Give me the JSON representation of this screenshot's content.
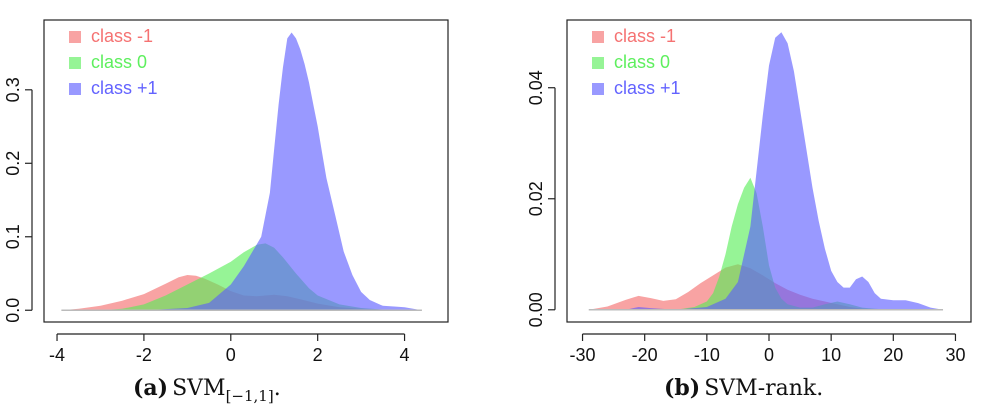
{
  "colors": {
    "class_-1": "#f46a6a",
    "class_0": "#55ee55",
    "class_+1": "#5b5bff",
    "baseline": "#bbbbbb",
    "axis": "#222222"
  },
  "chart_data": [
    {
      "type": "area",
      "caption_label": "(a)",
      "caption_text": "SVM",
      "caption_sub": "[−1,1]",
      "caption_suffix": ".",
      "xlim": [
        -4.3,
        5.0
      ],
      "ylim": [
        -0.016,
        0.395
      ],
      "xticks": [
        -4,
        -2,
        0,
        2,
        4
      ],
      "yticks": [
        0.0,
        0.1,
        0.2,
        0.3
      ],
      "xtick_labels": [
        "-4",
        "-2",
        "0",
        "2",
        "4"
      ],
      "ytick_labels": [
        "0.0",
        "0.1",
        "0.2",
        "0.3"
      ],
      "legend_position": "top-left",
      "series": [
        {
          "name": "class -1",
          "color_key": "class_-1",
          "x": [
            -3.9,
            -3.5,
            -3.0,
            -2.5,
            -2.0,
            -1.5,
            -1.2,
            -1.0,
            -0.8,
            -0.6,
            -0.3,
            0.0,
            0.3,
            0.6,
            0.8,
            1.0,
            1.3,
            1.6,
            2.0,
            2.5,
            3.0,
            3.5,
            4.0,
            4.4
          ],
          "y": [
            0.0,
            0.002,
            0.006,
            0.013,
            0.022,
            0.036,
            0.045,
            0.048,
            0.047,
            0.043,
            0.035,
            0.026,
            0.02,
            0.019,
            0.02,
            0.021,
            0.019,
            0.015,
            0.009,
            0.004,
            0.002,
            0.001,
            0.0,
            0.0
          ]
        },
        {
          "name": "class 0",
          "color_key": "class_0",
          "x": [
            -3.9,
            -3.0,
            -2.5,
            -2.0,
            -1.5,
            -1.0,
            -0.5,
            0.0,
            0.3,
            0.6,
            0.8,
            1.0,
            1.2,
            1.5,
            1.8,
            2.0,
            2.5,
            3.0,
            3.5,
            4.0,
            4.4
          ],
          "y": [
            0.0,
            0.0,
            0.002,
            0.008,
            0.02,
            0.035,
            0.05,
            0.066,
            0.079,
            0.089,
            0.091,
            0.085,
            0.072,
            0.05,
            0.03,
            0.02,
            0.008,
            0.003,
            0.001,
            0.0,
            0.0
          ]
        },
        {
          "name": "class +1",
          "color_key": "class_+1",
          "x": [
            -3.9,
            -2.0,
            -1.0,
            -0.5,
            0.0,
            0.3,
            0.5,
            0.7,
            0.9,
            1.0,
            1.1,
            1.2,
            1.3,
            1.4,
            1.5,
            1.6,
            1.7,
            1.8,
            1.9,
            2.0,
            2.1,
            2.2,
            2.4,
            2.6,
            2.8,
            3.0,
            3.2,
            3.5,
            3.8,
            4.0,
            4.2,
            4.4
          ],
          "y": [
            0.0,
            0.0,
            0.003,
            0.01,
            0.035,
            0.06,
            0.08,
            0.1,
            0.16,
            0.22,
            0.28,
            0.33,
            0.37,
            0.378,
            0.37,
            0.355,
            0.335,
            0.31,
            0.28,
            0.25,
            0.215,
            0.18,
            0.13,
            0.08,
            0.048,
            0.025,
            0.014,
            0.006,
            0.005,
            0.004,
            0.002,
            0.0
          ]
        }
      ]
    },
    {
      "type": "area",
      "caption_label": "(b)",
      "caption_text": "SVM-rank.",
      "xlim": [
        -32.5,
        32.5
      ],
      "ylim": [
        -0.0022,
        0.0522
      ],
      "xticks": [
        -30,
        -20,
        -10,
        0,
        10,
        20,
        30
      ],
      "yticks": [
        0.0,
        0.02,
        0.04
      ],
      "xtick_labels": [
        "-30",
        "-20",
        "-10",
        "0",
        "10",
        "20",
        "30"
      ],
      "ytick_labels": [
        "0.00",
        "0.02",
        "0.04"
      ],
      "legend_position": "top-left",
      "series": [
        {
          "name": "class -1",
          "color_key": "class_-1",
          "x": [
            -29,
            -26,
            -23,
            -21,
            -19,
            -17,
            -15,
            -13,
            -11,
            -9,
            -7,
            -5,
            -3,
            -1,
            1,
            3,
            5,
            7,
            9,
            11,
            13,
            15,
            17,
            19,
            21,
            24,
            28
          ],
          "y": [
            0.0,
            0.0006,
            0.0018,
            0.0025,
            0.0021,
            0.0016,
            0.0019,
            0.0032,
            0.0048,
            0.0062,
            0.0076,
            0.0082,
            0.0075,
            0.0062,
            0.0048,
            0.0036,
            0.0027,
            0.002,
            0.0015,
            0.001,
            0.0005,
            0.0002,
            0.0001,
            0.0,
            0.0,
            0.0,
            0.0
          ]
        },
        {
          "name": "class 0",
          "color_key": "class_0",
          "x": [
            -29,
            -15,
            -12,
            -10,
            -9,
            -8,
            -7,
            -6,
            -5,
            -4,
            -3,
            -2,
            -1,
            0,
            1,
            2,
            3,
            5,
            7,
            9,
            11,
            13,
            15,
            17,
            20,
            28
          ],
          "y": [
            0.0,
            0.0,
            0.0005,
            0.0015,
            0.003,
            0.006,
            0.01,
            0.015,
            0.019,
            0.022,
            0.0238,
            0.021,
            0.015,
            0.008,
            0.004,
            0.002,
            0.001,
            0.0004,
            0.0004,
            0.001,
            0.0015,
            0.001,
            0.0004,
            0.0002,
            0.0,
            0.0
          ]
        },
        {
          "name": "class +1",
          "color_key": "class_+1",
          "x": [
            -29,
            -23,
            -21,
            -19,
            -15,
            -10,
            -7,
            -5,
            -3,
            -1,
            0,
            1,
            2,
            3,
            4,
            5,
            6,
            7,
            8,
            9,
            10,
            11,
            12,
            13,
            14,
            15,
            16,
            17,
            18,
            20,
            22,
            24,
            26,
            28
          ],
          "y": [
            0.0,
            0.0,
            0.0005,
            0.0003,
            0.0,
            0.0005,
            0.002,
            0.005,
            0.015,
            0.035,
            0.044,
            0.049,
            0.05,
            0.048,
            0.043,
            0.036,
            0.029,
            0.022,
            0.016,
            0.011,
            0.007,
            0.005,
            0.004,
            0.004,
            0.0055,
            0.006,
            0.005,
            0.003,
            0.002,
            0.0017,
            0.0017,
            0.0012,
            0.0004,
            0.0
          ]
        }
      ]
    }
  ]
}
